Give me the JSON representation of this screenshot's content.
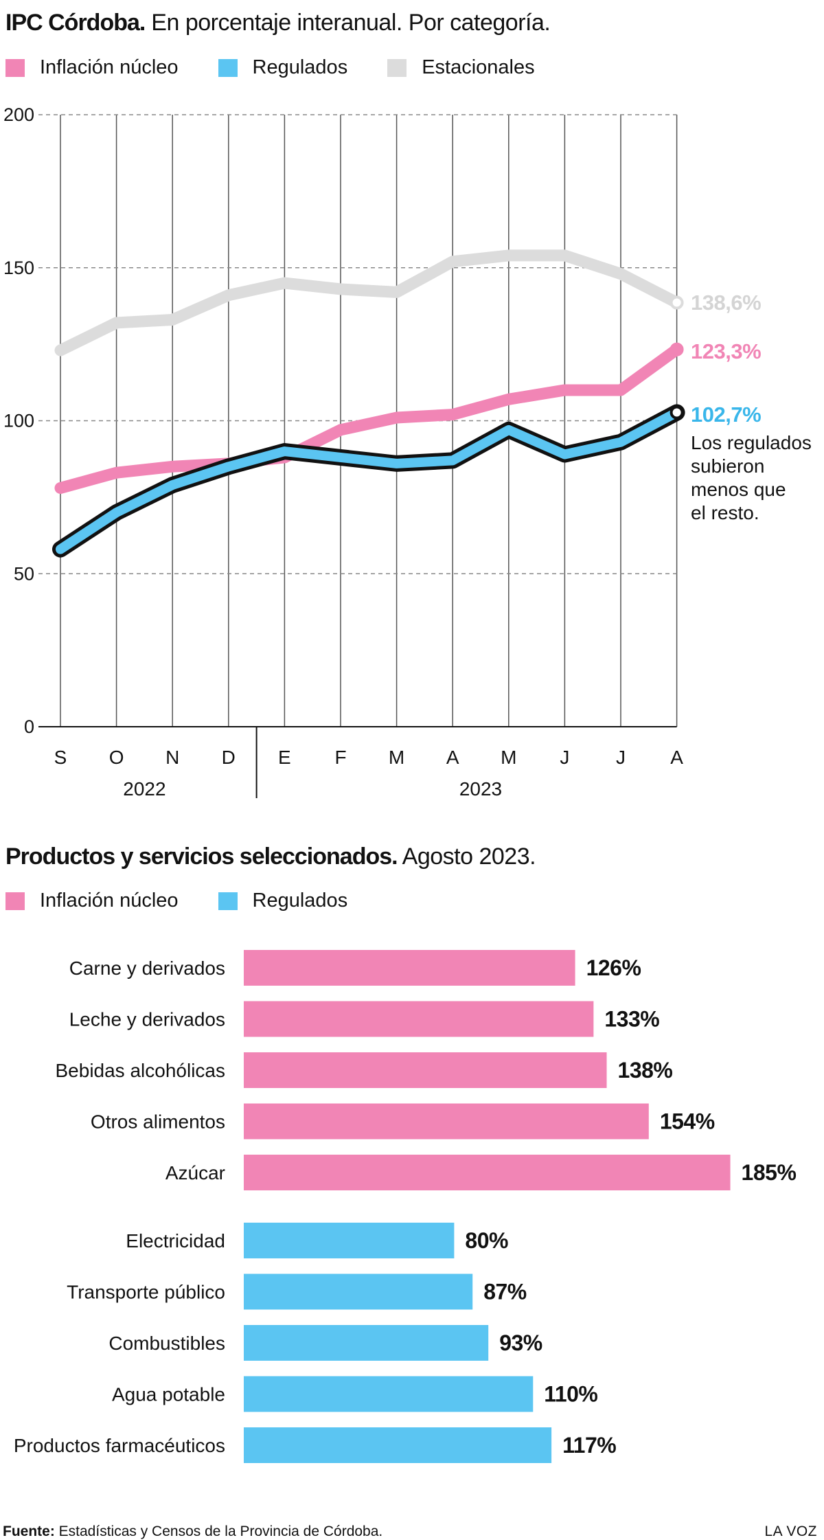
{
  "header": {
    "title_bold": "IPC Córdoba.",
    "title_rest": "En porcentaje interanual. Por categoría."
  },
  "legend1": [
    {
      "label": "Inflación núcleo",
      "color": "#f185b5"
    },
    {
      "label": "Regulados",
      "color": "#5bc5f2"
    },
    {
      "label": "Estacionales",
      "color": "#dcdcdc"
    }
  ],
  "annotation": [
    "Los regulados",
    "subieron",
    "menos que",
    "el resto."
  ],
  "chart_data": [
    {
      "type": "line",
      "x": [
        "S",
        "O",
        "N",
        "D",
        "E",
        "F",
        "M",
        "A",
        "M",
        "J",
        "J",
        "A"
      ],
      "year_labels": [
        "2022",
        "2023"
      ],
      "ylim": [
        0,
        200
      ],
      "yticks": [
        0,
        50,
        100,
        150,
        200
      ],
      "grid": true,
      "legend": "top",
      "series": [
        {
          "name": "Estacionales",
          "color": "#dcdcdc",
          "end_label": "138,6%",
          "values": [
            123,
            132,
            133,
            141,
            145,
            143,
            142,
            152,
            154,
            154,
            148,
            138.6
          ]
        },
        {
          "name": "Inflación núcleo",
          "color": "#f185b5",
          "end_label": "123,3%",
          "values": [
            78,
            83,
            85,
            86,
            88,
            97,
            101,
            102,
            107,
            110,
            110,
            123.3
          ]
        },
        {
          "name": "Regulados",
          "color": "#5bc5f2",
          "end_label": "102,7%",
          "values": [
            58,
            70,
            79,
            85,
            90,
            88,
            86,
            87,
            97,
            89,
            93,
            102.7
          ]
        }
      ]
    },
    {
      "type": "bar",
      "title_bold": "Productos y servicios seleccionados.",
      "title_rest": "Agosto 2023.",
      "legend": [
        {
          "label": "Inflación núcleo",
          "color": "#f185b5"
        },
        {
          "label": "Regulados",
          "color": "#5bc5f2"
        }
      ],
      "groups": [
        {
          "name": "Inflación núcleo",
          "color": "#f185b5",
          "categories": [
            "Carne y derivados",
            "Leche y derivados",
            "Bebidas alcohólicas",
            "Otros alimentos",
            "Azúcar"
          ],
          "values": [
            126,
            133,
            138,
            154,
            185
          ],
          "labels": [
            "126%",
            "133%",
            "138%",
            "154%",
            "185%"
          ]
        },
        {
          "name": "Regulados",
          "color": "#5bc5f2",
          "categories": [
            "Electricidad",
            "Transporte público",
            "Combustibles",
            "Agua potable",
            "Productos farmacéuticos"
          ],
          "values": [
            80,
            87,
            93,
            110,
            117
          ],
          "labels": [
            "80%",
            "87%",
            "93%",
            "110%",
            "117%"
          ]
        }
      ]
    }
  ],
  "footer": {
    "source_label": "Fuente:",
    "source_text": " Estadísticas y Censos de la Provincia de Córdoba.",
    "brand": "LA VOZ"
  }
}
